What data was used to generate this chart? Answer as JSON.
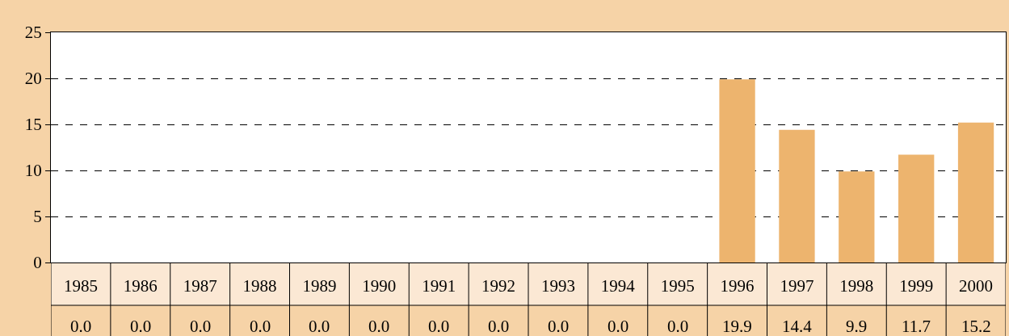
{
  "chart_data": {
    "type": "bar",
    "categories": [
      "1985",
      "1986",
      "1987",
      "1988",
      "1989",
      "1990",
      "1991",
      "1992",
      "1993",
      "1994",
      "1995",
      "1996",
      "1997",
      "1998",
      "1999",
      "2000"
    ],
    "values": [
      0,
      0,
      0,
      0,
      0,
      0,
      0,
      0,
      0,
      0,
      0,
      19.9,
      14.4,
      9.9,
      11.7,
      15.2
    ],
    "value_labels": [
      "0.0",
      "0.0",
      "0.0",
      "0.0",
      "0.0",
      "0.0",
      "0.0",
      "0.0",
      "0.0",
      "0.0",
      "0.0",
      "19.9",
      "14.4",
      "9.9",
      "11.7",
      "15.2"
    ],
    "color": "#edb46e",
    "ylim": [
      0,
      25
    ],
    "yticks": [
      0,
      5,
      10,
      15,
      20,
      25
    ],
    "grid": "y"
  }
}
